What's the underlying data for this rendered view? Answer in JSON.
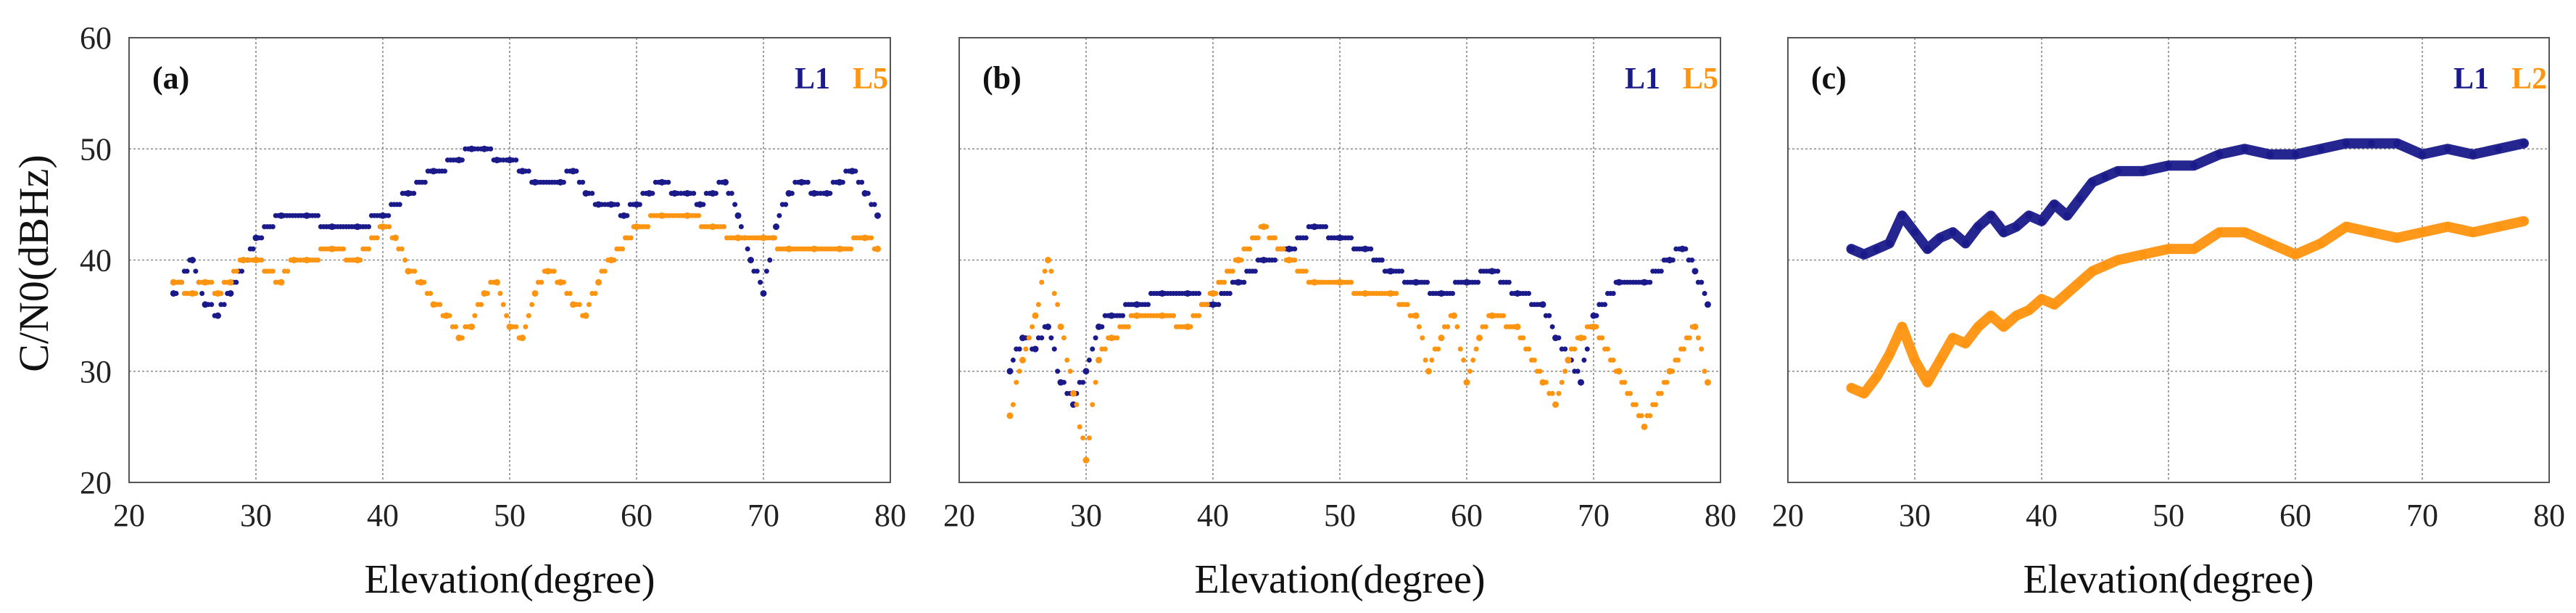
{
  "figure": {
    "ylabel": "C/N0(dBHz)",
    "xlabel": "Elevation(degree)"
  },
  "colors": {
    "l1": "#1a1a8a",
    "l5": "#ff9410",
    "grid": "#8a8a8a",
    "frame": "#555555"
  },
  "chart_data": [
    {
      "type": "scatter",
      "panel_label": "(a)",
      "xlabel": "Elevation(degree)",
      "ylabel": "C/N0(dBHz)",
      "xlim": [
        20,
        80
      ],
      "ylim": [
        20,
        60
      ],
      "xticks": [
        "20",
        "30",
        "40",
        "50",
        "60",
        "70",
        "80"
      ],
      "yticks": [
        "20",
        "30",
        "40",
        "50",
        "60"
      ],
      "legend": [
        "L1",
        "L5"
      ],
      "series": [
        {
          "name": "L1",
          "color": "#1a1a8a",
          "x": [
            23.5,
            25,
            26,
            27,
            28,
            30,
            32,
            34,
            36,
            38,
            40,
            42,
            44,
            46,
            47,
            48,
            49,
            50,
            51,
            52,
            54,
            55,
            56,
            57,
            58,
            59,
            60,
            61,
            62,
            63,
            64,
            65,
            66,
            67,
            68,
            69,
            70,
            71,
            72,
            73,
            74,
            75,
            76,
            77,
            78,
            79
          ],
          "y": [
            37,
            40,
            36,
            35,
            37,
            42,
            44,
            44,
            43,
            43,
            44,
            46,
            48,
            49,
            50,
            50,
            49,
            49,
            48,
            47,
            47,
            48,
            46,
            45,
            45,
            44,
            45,
            46,
            47,
            46,
            46,
            45,
            46,
            47,
            44,
            40,
            37,
            43,
            46,
            47,
            46,
            46,
            47,
            48,
            46,
            44
          ]
        },
        {
          "name": "L5",
          "color": "#ff9410",
          "x": [
            23.5,
            25,
            26,
            27,
            28,
            29,
            30,
            32,
            33,
            34,
            36,
            38,
            40,
            41,
            42,
            43,
            44,
            45,
            46,
            47,
            48,
            49,
            50,
            51,
            52,
            53,
            54,
            55,
            56,
            57,
            58,
            60,
            62,
            64,
            66,
            68,
            70,
            72,
            74,
            76,
            78,
            79
          ],
          "y": [
            38,
            37,
            38,
            37,
            38,
            40,
            40,
            38,
            40,
            40,
            41,
            40,
            43,
            42,
            39,
            38,
            36,
            35,
            33,
            34,
            37,
            38,
            34,
            33,
            37,
            39,
            38,
            36,
            35,
            38,
            40,
            43,
            44,
            44,
            43,
            42,
            42,
            41,
            41,
            41,
            42,
            41
          ]
        }
      ]
    },
    {
      "type": "scatter",
      "panel_label": "(b)",
      "xlabel": "Elevation(degree)",
      "ylabel": "",
      "xlim": [
        20,
        80
      ],
      "ylim": [
        20,
        60
      ],
      "xticks": [
        "20",
        "30",
        "40",
        "50",
        "60",
        "70",
        "80"
      ],
      "yticks": [
        "20",
        "30",
        "40",
        "50",
        "60"
      ],
      "legend": [
        "L1",
        "L5"
      ],
      "series": [
        {
          "name": "L1",
          "color": "#1a1a8a",
          "x": [
            24,
            25,
            26,
            27,
            28,
            29,
            30,
            31,
            32,
            34,
            36,
            38,
            40,
            42,
            44,
            46,
            48,
            50,
            52,
            54,
            56,
            58,
            60,
            62,
            64,
            66,
            67,
            68,
            69,
            70,
            72,
            74,
            76,
            77,
            78,
            79
          ],
          "y": [
            30,
            33,
            32,
            34,
            29,
            27,
            30,
            34,
            35,
            36,
            37,
            37,
            36,
            38,
            40,
            41,
            43,
            42,
            41,
            39,
            38,
            37,
            38,
            39,
            37,
            36,
            33,
            31,
            29,
            35,
            38,
            38,
            40,
            41,
            39,
            36
          ]
        },
        {
          "name": "L5",
          "color": "#ff9410",
          "x": [
            24,
            25,
            26,
            27,
            28,
            29,
            30,
            31,
            32,
            34,
            36,
            38,
            40,
            42,
            44,
            46,
            48,
            50,
            52,
            54,
            56,
            57,
            58,
            59,
            60,
            61,
            62,
            64,
            66,
            67,
            68,
            69,
            70,
            72,
            74,
            76,
            78,
            79
          ],
          "y": [
            26,
            31,
            35,
            40,
            34,
            28,
            22,
            31,
            33,
            35,
            35,
            34,
            37,
            40,
            43,
            40,
            38,
            38,
            37,
            37,
            35,
            30,
            33,
            35,
            29,
            33,
            35,
            34,
            29,
            27,
            31,
            33,
            34,
            30,
            25,
            30,
            34,
            29
          ]
        }
      ]
    },
    {
      "type": "scatter",
      "panel_label": "(c)",
      "xlabel": "Elevation(degree)",
      "ylabel": "",
      "xlim": [
        20,
        80
      ],
      "ylim": [
        20,
        60
      ],
      "xticks": [
        "20",
        "30",
        "40",
        "50",
        "60",
        "70",
        "80"
      ],
      "yticks": [
        "20",
        "30",
        "40",
        "50",
        "60"
      ],
      "legend": [
        "L1",
        "L2"
      ],
      "series": [
        {
          "name": "L1",
          "color": "#1a1a8a",
          "x": [
            25,
            26,
            27,
            28,
            29,
            30,
            31,
            32,
            33,
            34,
            35,
            36,
            37,
            38,
            39,
            40,
            41,
            42,
            43,
            44,
            45,
            46,
            48,
            50,
            52,
            54,
            56,
            58,
            60,
            62,
            64,
            66,
            68,
            70,
            72,
            74,
            76,
            78
          ],
          "y": [
            41,
            40.5,
            41,
            41.5,
            44,
            42.5,
            41,
            42,
            42.5,
            41.5,
            43,
            44,
            42.5,
            43,
            44,
            43.5,
            45,
            44,
            45.5,
            47,
            47.5,
            48,
            48,
            48.5,
            48.5,
            49.5,
            50,
            49.5,
            49.5,
            50,
            50.5,
            50.5,
            50.5,
            49.5,
            50,
            49.5,
            50,
            50.5
          ]
        },
        {
          "name": "L2",
          "color": "#ff9410",
          "x": [
            25,
            26,
            27,
            28,
            29,
            30,
            31,
            32,
            33,
            34,
            35,
            36,
            37,
            38,
            39,
            40,
            41,
            42,
            43,
            44,
            45,
            46,
            48,
            50,
            52,
            54,
            56,
            58,
            60,
            62,
            64,
            66,
            68,
            70,
            72,
            74,
            76,
            78
          ],
          "y": [
            28.5,
            28,
            29.5,
            31.5,
            34,
            31,
            29,
            31,
            33,
            32.5,
            34,
            35,
            34,
            35,
            35.5,
            36.5,
            36,
            37,
            38,
            39,
            39.5,
            40,
            40.5,
            41,
            41,
            42.5,
            42.5,
            41.5,
            40.5,
            41.5,
            43,
            42.5,
            42,
            42.5,
            43,
            42.5,
            43,
            43.5
          ]
        }
      ]
    }
  ]
}
